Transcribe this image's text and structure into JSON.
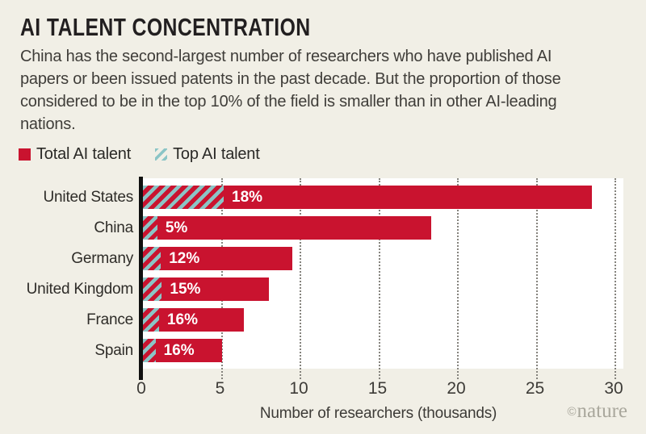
{
  "header": {
    "title": "AI TALENT CONCENTRATION",
    "subtitle": "China has the second-largest number of researchers who have published AI papers or been issued patents in the past decade. But the proportion of those considered to be in the top 10% of the field is smaller than in other AI-leading nations."
  },
  "legend": [
    {
      "label": "Total AI talent",
      "swatch": "solid-red"
    },
    {
      "label": "Top AI talent",
      "swatch": "teal-hatch"
    }
  ],
  "chart_data": {
    "type": "bar",
    "orientation": "horizontal",
    "categories": [
      "United States",
      "China",
      "Germany",
      "United Kingdom",
      "France",
      "Spain"
    ],
    "series": [
      {
        "name": "Total AI talent",
        "unit": "thousands of researchers",
        "values": [
          28.5,
          18.3,
          9.5,
          8.0,
          6.4,
          5.0
        ]
      },
      {
        "name": "Top AI talent (share of total)",
        "unit": "%",
        "values": [
          18,
          5,
          12,
          15,
          16,
          16
        ]
      }
    ],
    "bar_labels": [
      "18%",
      "5%",
      "12%",
      "15%",
      "16%",
      "16%"
    ],
    "xlabel": "Number of researchers (thousands)",
    "x_ticks": [
      0,
      5,
      10,
      15,
      20,
      25,
      30
    ],
    "xlim": [
      0,
      30
    ],
    "grid": "dotted-vertical",
    "plot_background": "#ffffff"
  },
  "footer": {
    "credit_symbol": "©",
    "credit_name": "nature"
  },
  "colors": {
    "total_red": "#c9132f",
    "top_teal": "#8bc5c6",
    "background": "#f1efe6",
    "plot_background": "#ffffff",
    "axis": "#111110",
    "text_dark": "#221f20",
    "text_body": "#3f3d39",
    "credit_gray": "#a9a79c"
  }
}
